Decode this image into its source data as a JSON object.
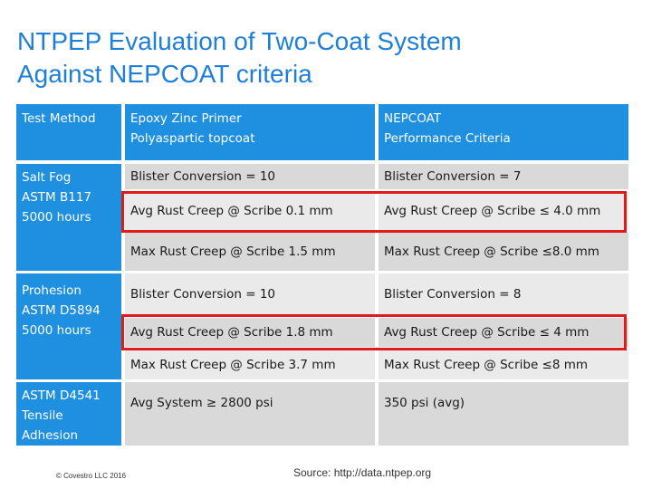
{
  "title": {
    "line1": "NTPEP Evaluation of Two-Coat System",
    "line2": "Against NEPCOAT criteria"
  },
  "table": {
    "headers": {
      "col1": "Test Method",
      "col2_line1": "Epoxy Zinc Primer",
      "col2_line2": "Polyaspartic topcoat",
      "col3_line1": "NEPCOAT",
      "col3_line2": "Performance Criteria"
    },
    "groups": [
      {
        "method": [
          "Salt Fog",
          "ASTM B117",
          "5000 hours"
        ],
        "rows": [
          [
            "Blister Conversion = 10",
            "Blister Conversion = 7"
          ],
          [
            "Avg Rust Creep @ Scribe 0.1 mm",
            "Avg Rust Creep @ Scribe  ≤ 4.0 mm"
          ],
          [
            "Max Rust Creep @ Scribe 1.5 mm",
            "Max Rust Creep @ Scribe  ≤8.0 mm"
          ]
        ]
      },
      {
        "method": [
          "Prohesion",
          "ASTM D5894",
          "5000 hours"
        ],
        "rows": [
          [
            "Blister Conversion = 10",
            "Blister Conversion = 8"
          ],
          [
            "Avg Rust Creep @ Scribe 1.8 mm",
            "Avg Rust Creep @ Scribe ≤ 4 mm"
          ],
          [
            "Max Rust Creep @ Scribe  3.7 mm",
            "Max Rust Creep @ Scribe ≤8 mm"
          ]
        ]
      },
      {
        "method": [
          "ASTM D4541",
          "Tensile",
          "Adhesion"
        ],
        "rows": [
          [
            "Avg System ≥ 2800 psi",
            "350 psi (avg)"
          ]
        ]
      }
    ]
  },
  "footer": {
    "copyright": "© Covestro LLC 2016",
    "source": "Source: http://data.ntpep.org"
  },
  "colors": {
    "title": "#1f7fd6",
    "header_bg": "#1f8fe0",
    "row_gray_dark": "#d9d9d9",
    "row_gray_light": "#eaeaea",
    "highlight_border": "#e01b1b"
  }
}
